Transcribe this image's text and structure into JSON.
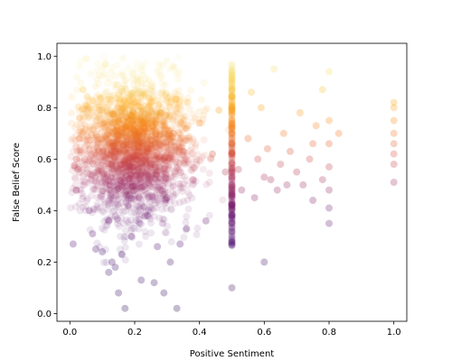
{
  "chart_data": {
    "type": "scatter",
    "title": "",
    "xlabel": "Positive Sentiment",
    "ylabel": "False Belief Score",
    "xlim": [
      -0.04,
      1.04
    ],
    "ylim": [
      -0.03,
      1.05
    ],
    "xticks": [
      0.0,
      0.2,
      0.4,
      0.6,
      0.8,
      1.0
    ],
    "xtick_labels": [
      "0.0",
      "0.2",
      "0.4",
      "0.6",
      "0.8",
      "1.0"
    ],
    "yticks": [
      0.0,
      0.2,
      0.4,
      0.6,
      0.8,
      1.0
    ],
    "ytick_labels": [
      "0.0",
      "0.2",
      "0.4",
      "0.6",
      "0.8",
      "1.0"
    ],
    "grid": false,
    "legend": "none",
    "colormap": "inferno (color mapped to False Belief Score)",
    "colors": {
      "low": "#3b0f70",
      "mid": "#b73779",
      "high": "#fca50a",
      "top": "#f6f1a8"
    },
    "series": [
      {
        "points": [
          [
            0.01,
            0.27
          ],
          [
            0.02,
            0.48
          ],
          [
            0.02,
            0.6
          ],
          [
            0.03,
            0.76
          ],
          [
            0.03,
            0.68
          ],
          [
            0.04,
            0.87
          ],
          [
            0.05,
            0.99
          ],
          [
            0.06,
            0.4
          ],
          [
            0.07,
            0.31
          ],
          [
            0.08,
            0.25
          ],
          [
            0.09,
            0.79
          ],
          [
            0.1,
            0.24
          ],
          [
            0.11,
            0.97
          ],
          [
            0.12,
            0.36
          ],
          [
            0.12,
            0.16
          ],
          [
            0.13,
            0.2
          ],
          [
            0.14,
            0.18
          ],
          [
            0.15,
            0.08
          ],
          [
            0.16,
            0.23
          ],
          [
            0.17,
            0.02
          ],
          [
            0.17,
            0.55
          ],
          [
            0.18,
            0.42
          ],
          [
            0.19,
            0.3
          ],
          [
            0.2,
            0.66
          ],
          [
            0.21,
            0.72
          ],
          [
            0.22,
            0.13
          ],
          [
            0.22,
            0.49
          ],
          [
            0.23,
            0.85
          ],
          [
            0.24,
            0.38
          ],
          [
            0.25,
            0.58
          ],
          [
            0.26,
            0.12
          ],
          [
            0.27,
            0.26
          ],
          [
            0.28,
            0.78
          ],
          [
            0.29,
            0.08
          ],
          [
            0.3,
            0.45
          ],
          [
            0.31,
            0.2
          ],
          [
            0.32,
            0.7
          ],
          [
            0.33,
            0.02
          ],
          [
            0.34,
            0.27
          ],
          [
            0.35,
            0.63
          ],
          [
            0.36,
            0.33
          ],
          [
            0.38,
            0.52
          ],
          [
            0.4,
            0.74
          ],
          [
            0.42,
            0.36
          ],
          [
            0.44,
            0.62
          ],
          [
            0.46,
            0.79
          ],
          [
            0.48,
            0.55
          ],
          [
            0.5,
            0.1
          ],
          [
            0.5,
            0.38
          ],
          [
            0.5,
            0.5
          ],
          [
            0.5,
            0.62
          ],
          [
            0.5,
            0.72
          ],
          [
            0.5,
            0.8
          ],
          [
            0.5,
            0.9
          ],
          [
            0.52,
            0.56
          ],
          [
            0.53,
            0.48
          ],
          [
            0.55,
            0.68
          ],
          [
            0.56,
            0.86
          ],
          [
            0.57,
            0.45
          ],
          [
            0.58,
            0.6
          ],
          [
            0.59,
            0.8
          ],
          [
            0.6,
            0.53
          ],
          [
            0.6,
            0.2
          ],
          [
            0.61,
            0.64
          ],
          [
            0.62,
            0.52
          ],
          [
            0.63,
            0.95
          ],
          [
            0.64,
            0.48
          ],
          [
            0.65,
            0.58
          ],
          [
            0.66,
            0.7
          ],
          [
            0.67,
            0.5
          ],
          [
            0.68,
            0.63
          ],
          [
            0.7,
            0.55
          ],
          [
            0.71,
            0.78
          ],
          [
            0.72,
            0.5
          ],
          [
            0.74,
            0.6
          ],
          [
            0.75,
            0.44
          ],
          [
            0.75,
            0.66
          ],
          [
            0.76,
            0.73
          ],
          [
            0.78,
            0.87
          ],
          [
            0.78,
            0.52
          ],
          [
            0.8,
            0.35
          ],
          [
            0.8,
            0.41
          ],
          [
            0.8,
            0.48
          ],
          [
            0.8,
            0.57
          ],
          [
            0.8,
            0.66
          ],
          [
            0.8,
            0.75
          ],
          [
            0.8,
            0.94
          ],
          [
            0.83,
            0.7
          ],
          [
            1.0,
            0.51
          ],
          [
            1.0,
            0.58
          ],
          [
            1.0,
            0.62
          ],
          [
            1.0,
            0.66
          ],
          [
            1.0,
            0.7
          ],
          [
            1.0,
            0.75
          ],
          [
            1.0,
            0.8
          ],
          [
            1.0,
            0.82
          ]
        ]
      }
    ]
  }
}
